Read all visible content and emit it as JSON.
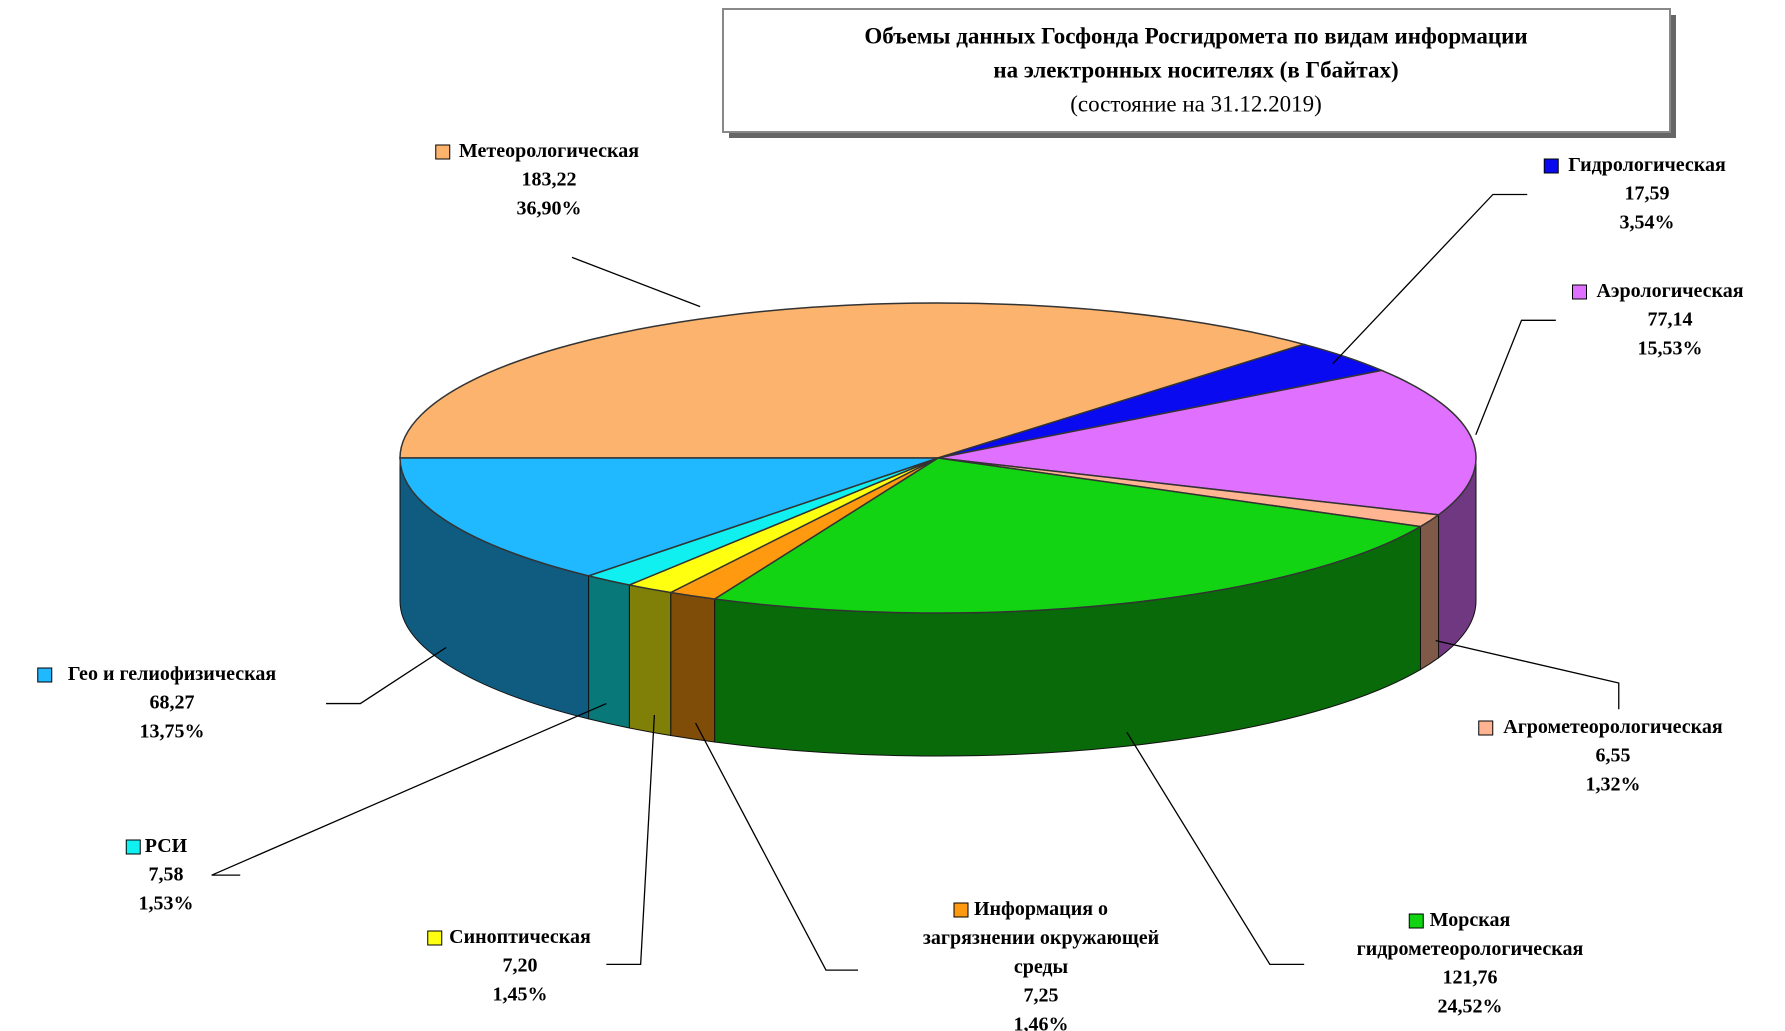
{
  "chart_data": {
    "type": "pie3d",
    "title_lines": [
      "Объемы данных Госфонда Росгидромета по видам информации",
      "на электронных носителях (в Гбайтах)"
    ],
    "subtitle": "(состояние на 31.12.2019)",
    "categories": [
      "Метеорологическая",
      "Гидрологическая",
      "Аэрологическая",
      "Агрометеорологическая",
      "Морская гидрометеорологическая",
      "Информация о загрязнении окружающей среды",
      "Синоптическая",
      "РСИ",
      "Гео и гелиофизическая"
    ],
    "values": [
      183.22,
      17.59,
      77.14,
      6.55,
      121.76,
      7.25,
      7.2,
      7.58,
      68.27
    ],
    "value_labels": [
      "183,22",
      "17,59",
      "77,14",
      "6,55",
      "121,76",
      "7,25",
      "7,20",
      "7,58",
      "68,27"
    ],
    "percents": [
      36.9,
      3.54,
      15.53,
      1.32,
      24.52,
      1.46,
      1.45,
      1.53,
      13.75
    ],
    "percent_labels": [
      "36,90%",
      "3,54%",
      "15,53%",
      "1,32%",
      "24,52%",
      "1,46%",
      "1,45%",
      "1,53%",
      "13,75%"
    ],
    "colors": [
      "#fbb36e",
      "#0a0af0",
      "#e070ff",
      "#ffb592",
      "#12d412",
      "#ff9a10",
      "#ffff10",
      "#10f0f0",
      "#20b8ff"
    ]
  }
}
